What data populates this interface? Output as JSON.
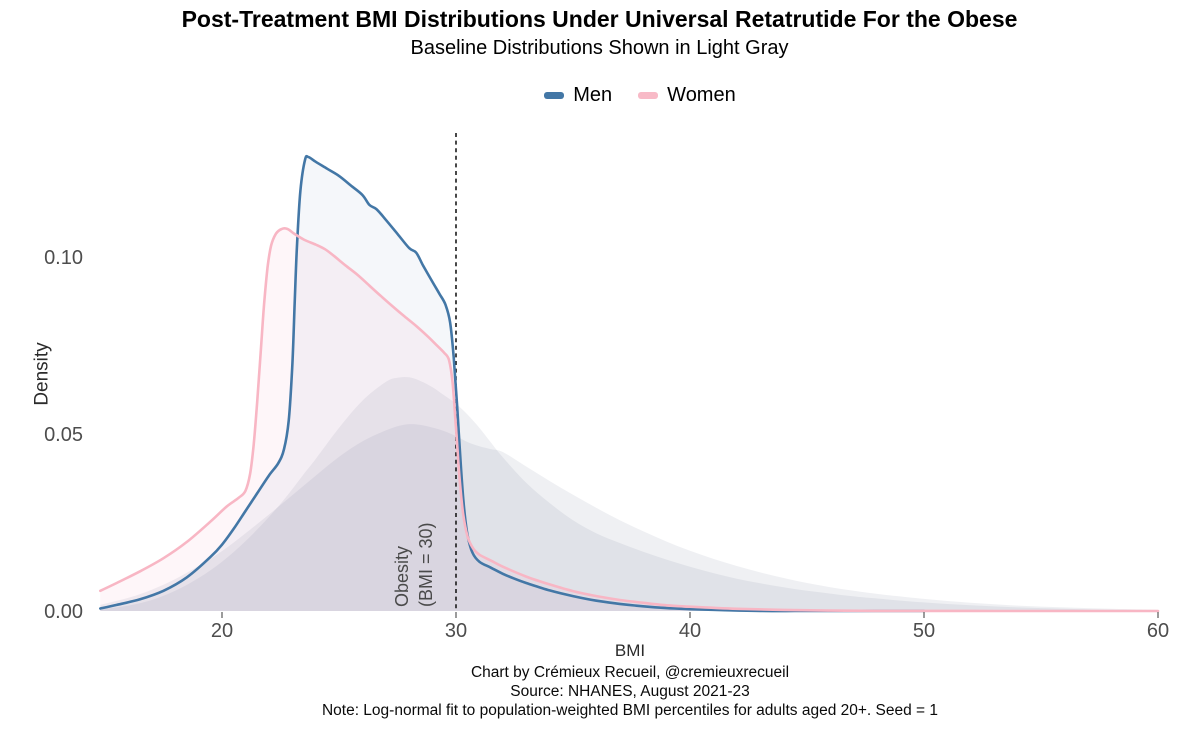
{
  "title": "Post-Treatment BMI Distributions Under Universal Retatrutide For the Obese",
  "subtitle": "Baseline Distributions Shown in Light Gray",
  "legend": {
    "items": [
      {
        "label": "Men",
        "color": "#4377a6"
      },
      {
        "label": "Women",
        "color": "#f8bac7"
      }
    ]
  },
  "annotation": {
    "line1": "Obesity",
    "line2": "(BMI = 30)"
  },
  "caption": {
    "line1": "Chart by Crémieux Recueil, @cremieuxrecueil",
    "line2": "Source: NHANES, August 2021-23",
    "line3": "Note: Log-normal fit to population-weighted BMI percentiles for adults aged 20+. Seed = 1"
  },
  "colors": {
    "men_line": "#4377a6",
    "women_line": "#f8b6c4",
    "baseline_fill": "rgba(108,118,145,0.105)",
    "men_fill": "rgba(70,112,159,0.055)",
    "women_fill": "rgba(245,160,185,0.09)",
    "vline": "#1a1a1a",
    "tick": "#707070"
  },
  "chart_data": {
    "type": "area",
    "title": "Post-Treatment BMI Distributions Under Universal Retatrutide For the Obese",
    "subtitle": "Baseline Distributions Shown in Light Gray",
    "xlabel": "BMI",
    "ylabel": "Density",
    "xlim": [
      14.8,
      60
    ],
    "ylim": [
      0,
      0.135
    ],
    "x_ticks": [
      20,
      30,
      40,
      50,
      60
    ],
    "y_ticks": [
      {
        "value": 0.0,
        "label": "0.00"
      },
      {
        "value": 0.05,
        "label": "0.05"
      },
      {
        "value": 0.1,
        "label": "0.10"
      }
    ],
    "grid": false,
    "legend_position": "top-center",
    "vline": {
      "x": 30,
      "style": "dashed",
      "label": "Obesity (BMI = 30)"
    },
    "series": [
      {
        "name": "Women (baseline)",
        "role": "baseline",
        "stroke": null,
        "fill": "baseline_fill",
        "points": [
          [
            14.8,
            0.002
          ],
          [
            16,
            0.004
          ],
          [
            17,
            0.0063
          ],
          [
            18,
            0.0093
          ],
          [
            19,
            0.013
          ],
          [
            20,
            0.0172
          ],
          [
            21,
            0.0222
          ],
          [
            22,
            0.0275
          ],
          [
            23,
            0.033
          ],
          [
            24,
            0.0385
          ],
          [
            25,
            0.0438
          ],
          [
            26,
            0.0482
          ],
          [
            27,
            0.0513
          ],
          [
            27.7,
            0.0528
          ],
          [
            28.3,
            0.053
          ],
          [
            29,
            0.0521
          ],
          [
            29.5,
            0.0511
          ],
          [
            30,
            0.0497
          ],
          [
            30.5,
            0.048
          ],
          [
            31,
            0.0468
          ],
          [
            31.5,
            0.046
          ],
          [
            32,
            0.0452
          ],
          [
            33,
            0.0411
          ],
          [
            34,
            0.037
          ],
          [
            35,
            0.0331
          ],
          [
            36,
            0.0294
          ],
          [
            37,
            0.0259
          ],
          [
            38,
            0.0228
          ],
          [
            39,
            0.0199
          ],
          [
            40,
            0.0173
          ],
          [
            41,
            0.015
          ],
          [
            42,
            0.013
          ],
          [
            43,
            0.0112
          ],
          [
            44,
            0.0096
          ],
          [
            45,
            0.0082
          ],
          [
            46,
            0.007
          ],
          [
            47,
            0.006
          ],
          [
            48,
            0.0051
          ],
          [
            50,
            0.0037
          ],
          [
            52,
            0.0026
          ],
          [
            54,
            0.0018
          ],
          [
            56,
            0.0013
          ],
          [
            58,
            0.0009
          ],
          [
            60,
            0.0006
          ]
        ]
      },
      {
        "name": "Men (baseline)",
        "role": "baseline",
        "stroke": null,
        "fill": "baseline_fill",
        "points": [
          [
            14.8,
            0.0007
          ],
          [
            16,
            0.0018
          ],
          [
            17,
            0.0034
          ],
          [
            18,
            0.006
          ],
          [
            19,
            0.0096
          ],
          [
            20,
            0.0142
          ],
          [
            21,
            0.02
          ],
          [
            22,
            0.0268
          ],
          [
            22.8,
            0.033
          ],
          [
            23.5,
            0.039
          ],
          [
            24,
            0.0432
          ],
          [
            25,
            0.052
          ],
          [
            26,
            0.0597
          ],
          [
            27,
            0.065
          ],
          [
            27.5,
            0.0662
          ],
          [
            28,
            0.0663
          ],
          [
            28.5,
            0.0652
          ],
          [
            29,
            0.0635
          ],
          [
            29.5,
            0.0612
          ],
          [
            30,
            0.0588
          ],
          [
            30.5,
            0.0557
          ],
          [
            31,
            0.052
          ],
          [
            31.5,
            0.0478
          ],
          [
            32,
            0.0437
          ],
          [
            33,
            0.0365
          ],
          [
            34,
            0.0308
          ],
          [
            35,
            0.0259
          ],
          [
            36,
            0.0222
          ],
          [
            37,
            0.0195
          ],
          [
            38,
            0.017
          ],
          [
            39,
            0.0148
          ],
          [
            40,
            0.0128
          ],
          [
            41,
            0.011
          ],
          [
            42,
            0.0094
          ],
          [
            43,
            0.0081
          ],
          [
            44,
            0.007
          ],
          [
            45,
            0.006
          ],
          [
            46,
            0.0052
          ],
          [
            47,
            0.0044
          ],
          [
            48,
            0.0038
          ],
          [
            50,
            0.0027
          ],
          [
            52,
            0.0019
          ],
          [
            54,
            0.0013
          ],
          [
            56,
            0.0009
          ],
          [
            58,
            0.0006
          ],
          [
            60,
            0.0004
          ]
        ]
      },
      {
        "name": "Men",
        "role": "post-treatment",
        "stroke": "men_line",
        "fill": "men_fill",
        "points": [
          [
            14.8,
            0.001
          ],
          [
            15.5,
            0.002
          ],
          [
            16.5,
            0.0036
          ],
          [
            17.5,
            0.006
          ],
          [
            18.5,
            0.0098
          ],
          [
            19.5,
            0.0155
          ],
          [
            20,
            0.019
          ],
          [
            20.5,
            0.0235
          ],
          [
            21,
            0.0285
          ],
          [
            21.5,
            0.0335
          ],
          [
            22,
            0.0385
          ],
          [
            22.4,
            0.042
          ],
          [
            22.65,
            0.046
          ],
          [
            22.85,
            0.054
          ],
          [
            23,
            0.069
          ],
          [
            23.1,
            0.086
          ],
          [
            23.2,
            0.103
          ],
          [
            23.35,
            0.119
          ],
          [
            23.55,
            0.1278
          ],
          [
            23.7,
            0.1285
          ],
          [
            24,
            0.1272
          ],
          [
            24.5,
            0.1252
          ],
          [
            25,
            0.1232
          ],
          [
            25.5,
            0.1205
          ],
          [
            26,
            0.1178
          ],
          [
            26.3,
            0.115
          ],
          [
            26.6,
            0.1138
          ],
          [
            27,
            0.1108
          ],
          [
            27.5,
            0.1068
          ],
          [
            28,
            0.1028
          ],
          [
            28.3,
            0.1015
          ],
          [
            28.6,
            0.0978
          ],
          [
            29,
            0.0932
          ],
          [
            29.3,
            0.0898
          ],
          [
            29.55,
            0.0868
          ],
          [
            29.75,
            0.0818
          ],
          [
            29.9,
            0.072
          ],
          [
            30.05,
            0.058
          ],
          [
            30.2,
            0.042
          ],
          [
            30.35,
            0.029
          ],
          [
            30.5,
            0.0215
          ],
          [
            30.7,
            0.0168
          ],
          [
            31,
            0.0142
          ],
          [
            31.5,
            0.0125
          ],
          [
            32,
            0.0108
          ],
          [
            32.5,
            0.0094
          ],
          [
            33,
            0.0082
          ],
          [
            34,
            0.0061
          ],
          [
            35,
            0.0045
          ],
          [
            36,
            0.0032
          ],
          [
            37,
            0.0023
          ],
          [
            38,
            0.0016
          ],
          [
            39,
            0.0011
          ],
          [
            40,
            0.0008
          ],
          [
            41.5,
            0.0005
          ],
          [
            43,
            0.0003
          ],
          [
            45,
            0.0002
          ],
          [
            47,
            0.0001
          ],
          [
            49,
            0.0001
          ],
          [
            50,
            0
          ]
        ]
      },
      {
        "name": "Women",
        "role": "post-treatment",
        "stroke": "women_line",
        "fill": "women_fill",
        "points": [
          [
            14.8,
            0.006
          ],
          [
            15.5,
            0.0082
          ],
          [
            16.5,
            0.0115
          ],
          [
            17.5,
            0.0152
          ],
          [
            18.5,
            0.0198
          ],
          [
            19.5,
            0.0255
          ],
          [
            20.2,
            0.0298
          ],
          [
            20.7,
            0.0322
          ],
          [
            21,
            0.0342
          ],
          [
            21.2,
            0.039
          ],
          [
            21.35,
            0.047
          ],
          [
            21.5,
            0.059
          ],
          [
            21.65,
            0.073
          ],
          [
            21.8,
            0.087
          ],
          [
            21.95,
            0.0975
          ],
          [
            22.1,
            0.1035
          ],
          [
            22.3,
            0.1068
          ],
          [
            22.55,
            0.1082
          ],
          [
            22.8,
            0.1082
          ],
          [
            23.1,
            0.1068
          ],
          [
            23.5,
            0.1052
          ],
          [
            24,
            0.1038
          ],
          [
            24.4,
            0.1025
          ],
          [
            24.8,
            0.1005
          ],
          [
            25.3,
            0.0978
          ],
          [
            25.8,
            0.0952
          ],
          [
            26.3,
            0.0922
          ],
          [
            26.8,
            0.0892
          ],
          [
            27.3,
            0.0863
          ],
          [
            27.8,
            0.0835
          ],
          [
            28.3,
            0.0808
          ],
          [
            28.8,
            0.0778
          ],
          [
            29.2,
            0.0752
          ],
          [
            29.5,
            0.0732
          ],
          [
            29.7,
            0.0712
          ],
          [
            29.85,
            0.065
          ],
          [
            30,
            0.052
          ],
          [
            30.15,
            0.038
          ],
          [
            30.3,
            0.028
          ],
          [
            30.5,
            0.0212
          ],
          [
            30.75,
            0.0178
          ],
          [
            31,
            0.0162
          ],
          [
            31.5,
            0.0145
          ],
          [
            32,
            0.0128
          ],
          [
            33,
            0.01
          ],
          [
            34,
            0.0078
          ],
          [
            35,
            0.0059
          ],
          [
            36,
            0.0045
          ],
          [
            37,
            0.0034
          ],
          [
            38,
            0.0026
          ],
          [
            39,
            0.0019
          ],
          [
            40,
            0.0015
          ],
          [
            42,
            0.0009
          ],
          [
            44,
            0.0006
          ],
          [
            46,
            0.0004
          ],
          [
            48,
            0.0003
          ],
          [
            50,
            0.0003
          ],
          [
            53,
            0.0002
          ],
          [
            56,
            0.0002
          ],
          [
            60,
            0.0002
          ]
        ]
      }
    ]
  }
}
